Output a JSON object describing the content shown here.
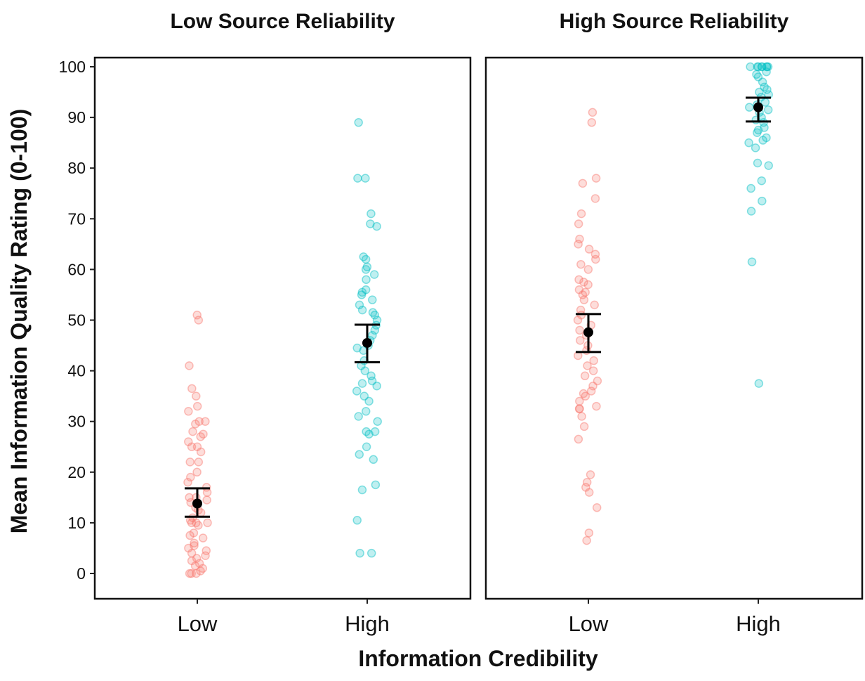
{
  "chart_data": {
    "type": "scatter",
    "ylabel": "Mean Information Quality Rating (0-100)",
    "xlabel": "Information Credibility",
    "ylim": [
      -5,
      105
    ],
    "yticks": [
      0,
      10,
      20,
      30,
      40,
      50,
      60,
      70,
      80,
      90,
      100
    ],
    "categories": [
      "Low",
      "High"
    ],
    "grid": false,
    "colors": {
      "Low": "#F8766D",
      "High": "#00BFC4",
      "summary": "#000000"
    },
    "panels": [
      {
        "title": "Low Source Reliability",
        "groups": [
          {
            "category": "Low",
            "mean": 13.8,
            "ci": [
              11.2,
              16.8
            ],
            "points": [
              51,
              50,
              41,
              36.5,
              35,
              33,
              32,
              30,
              30,
              29.5,
              28,
              27.5,
              27,
              26,
              25,
              25,
              24,
              22,
              22,
              20,
              19,
              18,
              17,
              16,
              15,
              15,
              14.5,
              14,
              13,
              12.5,
              12,
              11,
              10.5,
              10,
              10,
              10,
              9.5,
              8,
              7.5,
              7,
              6,
              5.5,
              5,
              4.5,
              4,
              3.5,
              3,
              2.5,
              2,
              1.5,
              1,
              0.5,
              0,
              0,
              0
            ]
          },
          {
            "category": "High",
            "mean": 45.5,
            "ci": [
              41.7,
              49.1
            ],
            "points": [
              89,
              78,
              78,
              71,
              69,
              68.5,
              62.5,
              62,
              60.5,
              60,
              59,
              58,
              56,
              55.5,
              55,
              54,
              53,
              52,
              51.5,
              51,
              50,
              49,
              48,
              47,
              46,
              45,
              44.5,
              44,
              42,
              41,
              40,
              39,
              38,
              37.5,
              37,
              36,
              35,
              34,
              32,
              31,
              30,
              28,
              28,
              27.5,
              25,
              23.5,
              22.5,
              17.5,
              16.5,
              10.5,
              4,
              4
            ]
          }
        ]
      },
      {
        "title": "High Source Reliability",
        "groups": [
          {
            "category": "Low",
            "mean": 47.6,
            "ci": [
              43.7,
              51.2
            ],
            "points": [
              91,
              89,
              78,
              77,
              74,
              71,
              69,
              66,
              65,
              64,
              63,
              62,
              61,
              60,
              58,
              57.5,
              57,
              56,
              55.5,
              55,
              54,
              53,
              52,
              51,
              50,
              49,
              48,
              47,
              46,
              45,
              44,
              43,
              42,
              41,
              40,
              39,
              38,
              37,
              36,
              35.5,
              35,
              34,
              33,
              32.5,
              32.5,
              31,
              29,
              26.5,
              19.5,
              18,
              17,
              16,
              13,
              8,
              6.5
            ]
          },
          {
            "category": "High",
            "mean": 92.0,
            "ci": [
              89.2,
              93.9
            ],
            "points": [
              100,
              100,
              100,
              100,
              100,
              100,
              100,
              100,
              99,
              98.5,
              98,
              97,
              96,
              95.5,
              95,
              94.5,
              94,
              93,
              92.5,
              92,
              91.5,
              91,
              90,
              89.5,
              89,
              88,
              87.5,
              87,
              86,
              85.5,
              85,
              84,
              81,
              80.5,
              77.5,
              76,
              73.5,
              71.5,
              61.5,
              37.5
            ]
          }
        ]
      }
    ]
  }
}
